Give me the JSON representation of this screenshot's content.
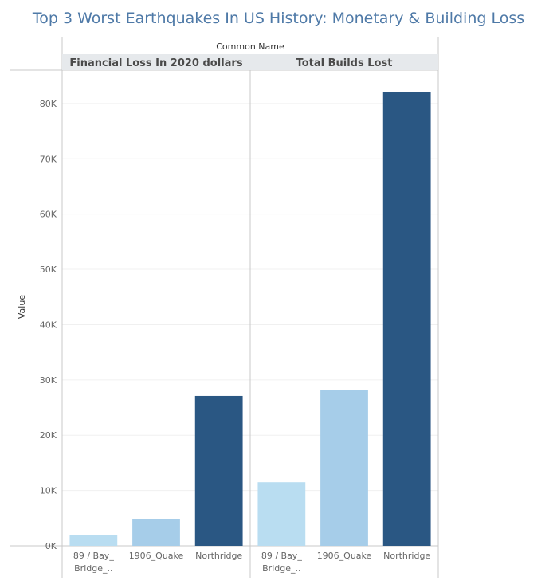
{
  "chart_data": {
    "type": "bar",
    "title": "Top 3 Worst Earthquakes In US History: Monetary & Building Loss",
    "column_header": "Common Name",
    "ylabel": "Value",
    "ylim": [
      0,
      82000
    ],
    "yticks": [
      {
        "value": 0,
        "label": "0K"
      },
      {
        "value": 10000,
        "label": "10K"
      },
      {
        "value": 20000,
        "label": "20K"
      },
      {
        "value": 30000,
        "label": "30K"
      },
      {
        "value": 40000,
        "label": "40K"
      },
      {
        "value": 50000,
        "label": "50K"
      },
      {
        "value": 60000,
        "label": "60K"
      },
      {
        "value": 70000,
        "label": "70K"
      },
      {
        "value": 80000,
        "label": "80K"
      }
    ],
    "panels": [
      {
        "name": "Financial Loss In 2020 dollars",
        "categories": [
          [
            "89 / Bay_",
            "Bridge_.."
          ],
          [
            "1906_Quake"
          ],
          [
            "Northridge"
          ]
        ],
        "values": [
          2000,
          4800,
          27100
        ],
        "colors": [
          "#b9ddf1",
          "#a6cde9",
          "#2a5783"
        ]
      },
      {
        "name": "Total Builds Lost",
        "categories": [
          [
            "89 / Bay_",
            "Bridge_.."
          ],
          [
            "1906_Quake"
          ],
          [
            "Northridge"
          ]
        ],
        "values": [
          11500,
          28200,
          82000
        ],
        "colors": [
          "#b9ddf1",
          "#a6cde9",
          "#2a5783"
        ]
      }
    ],
    "grid": true,
    "legend": "none"
  }
}
